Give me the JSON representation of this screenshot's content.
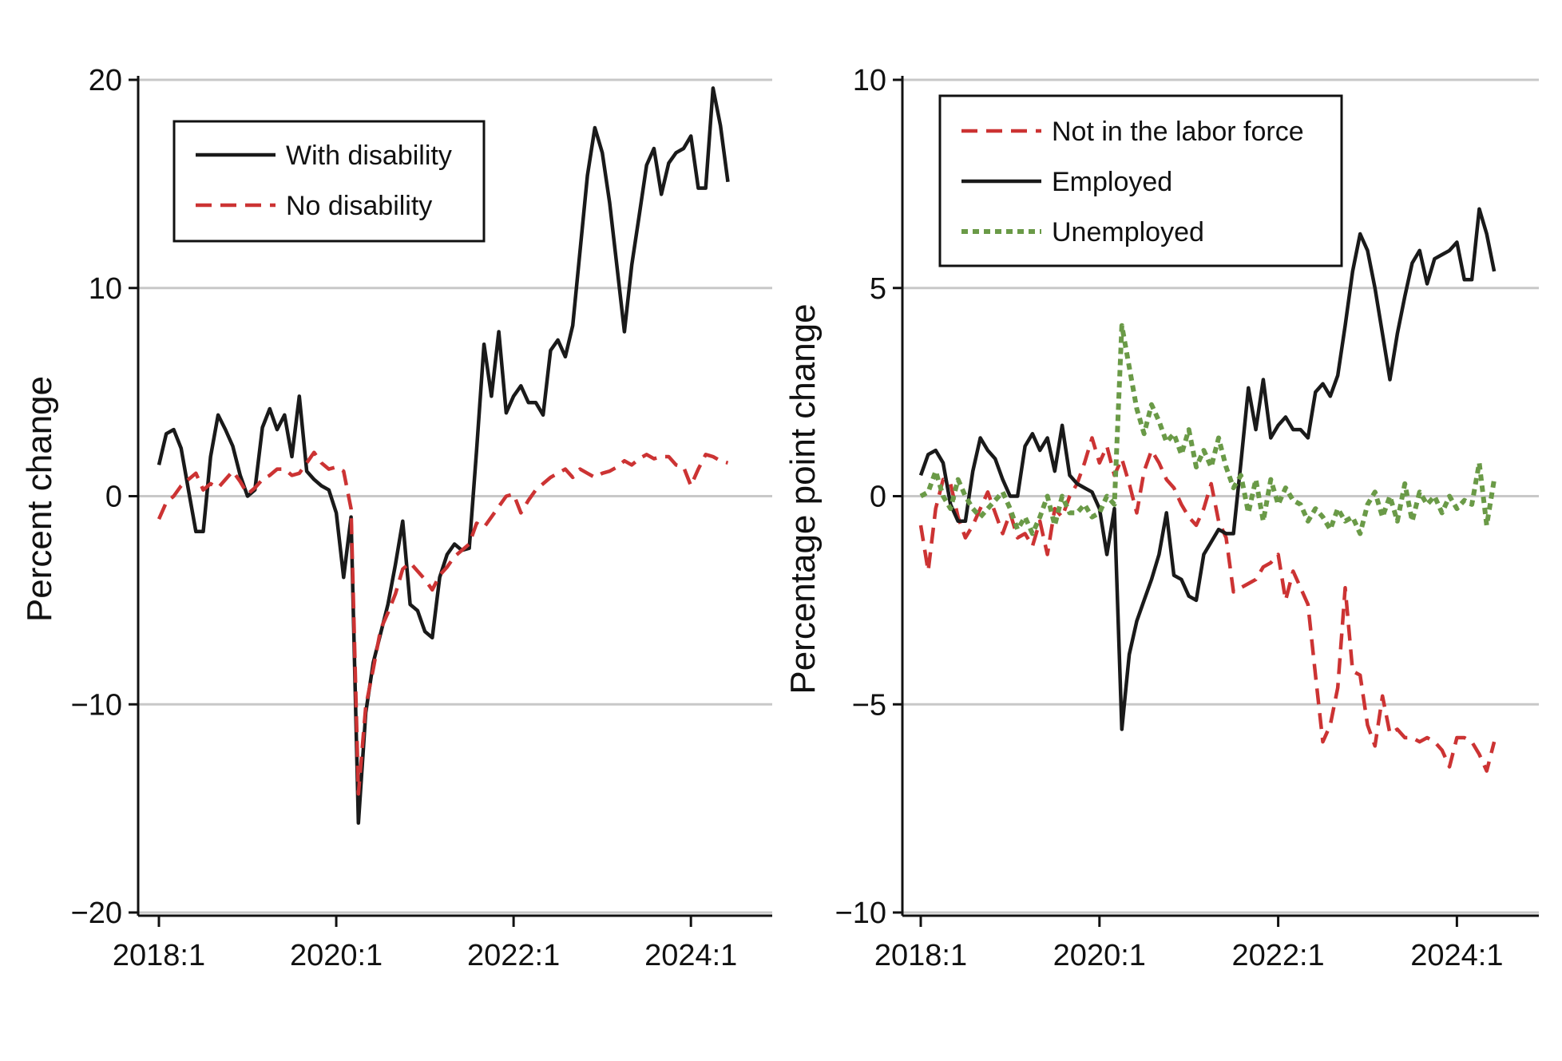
{
  "colors": {
    "disability": "#1a1a1a",
    "no_disability": "#cc3333",
    "not_in_labor_force": "#cc3333",
    "employed": "#1a1a1a",
    "unemployed": "#6a9a47",
    "grid": "#c8c8c8"
  },
  "chart_data": [
    {
      "type": "line",
      "title": "",
      "xlabel": "",
      "ylabel": "Percent change",
      "ylim": [
        -20,
        20
      ],
      "yticks": [
        20,
        10,
        0,
        -10,
        -20
      ],
      "ytick_labels": [
        "20",
        "10",
        "0",
        "−10",
        "−20"
      ],
      "xlim": [
        2018.0,
        2024.917
      ],
      "xticks": [
        2018.0,
        2020.0,
        2022.0,
        2024.0
      ],
      "xtick_labels": [
        "2018:1",
        "2020:1",
        "2022:1",
        "2024:1"
      ],
      "grid": true,
      "legend_position": "top-left",
      "series": [
        {
          "name": "With disability",
          "style": "solid",
          "color": "#1a1a1a",
          "x": [
            2018.0,
            2018.083,
            2018.167,
            2018.25,
            2018.333,
            2018.417,
            2018.5,
            2018.583,
            2018.667,
            2018.75,
            2018.833,
            2018.917,
            2019.0,
            2019.083,
            2019.167,
            2019.25,
            2019.333,
            2019.417,
            2019.5,
            2019.583,
            2019.667,
            2019.75,
            2019.833,
            2019.917,
            2020.0,
            2020.083,
            2020.167,
            2020.25,
            2020.333,
            2020.417,
            2020.5,
            2020.583,
            2020.667,
            2020.75,
            2020.833,
            2020.917,
            2021.0,
            2021.083,
            2021.167,
            2021.25,
            2021.333,
            2021.417,
            2021.5,
            2021.583,
            2021.667,
            2021.75,
            2021.833,
            2021.917,
            2022.0,
            2022.083,
            2022.167,
            2022.25,
            2022.333,
            2022.417,
            2022.5,
            2022.583,
            2022.667,
            2022.75,
            2022.833,
            2022.917,
            2023.0,
            2023.083,
            2023.167,
            2023.25,
            2023.333,
            2023.417,
            2023.5,
            2023.583,
            2023.667,
            2023.75,
            2023.833,
            2023.917,
            2024.0,
            2024.083,
            2024.167,
            2024.25,
            2024.333,
            2024.417
          ],
          "y": [
            1.5,
            3.0,
            3.2,
            2.3,
            0.3,
            -1.7,
            -1.7,
            1.9,
            3.9,
            3.2,
            2.4,
            1.0,
            0.0,
            0.3,
            3.3,
            4.2,
            3.2,
            3.9,
            1.9,
            4.8,
            1.2,
            0.8,
            0.5,
            0.3,
            -0.8,
            -3.9,
            -1.0,
            -15.7,
            -10.4,
            -8.0,
            -6.6,
            -5.2,
            -3.3,
            -1.2,
            -5.2,
            -5.5,
            -6.5,
            -6.8,
            -3.9,
            -2.8,
            -2.3,
            -2.6,
            -2.5,
            2.2,
            7.3,
            4.8,
            7.9,
            4.0,
            4.8,
            5.3,
            4.5,
            4.5,
            3.9,
            7.0,
            7.5,
            6.7,
            8.2,
            11.8,
            15.4,
            17.7,
            16.5,
            14.1,
            11.0,
            7.9,
            11.1,
            13.5,
            15.9,
            16.7,
            14.5,
            16.0,
            16.5,
            16.7,
            17.3,
            14.8,
            14.8,
            19.6,
            17.8,
            15.1
          ]
        },
        {
          "name": "No disability",
          "style": "dashed",
          "color": "#cc3333",
          "x": [
            2018.0,
            2018.083,
            2018.167,
            2018.25,
            2018.333,
            2018.417,
            2018.5,
            2018.583,
            2018.667,
            2018.75,
            2018.833,
            2018.917,
            2019.0,
            2019.083,
            2019.167,
            2019.25,
            2019.333,
            2019.417,
            2019.5,
            2019.583,
            2019.667,
            2019.75,
            2019.833,
            2019.917,
            2020.0,
            2020.083,
            2020.167,
            2020.25,
            2020.333,
            2020.417,
            2020.5,
            2020.583,
            2020.667,
            2020.75,
            2020.833,
            2020.917,
            2021.0,
            2021.083,
            2021.167,
            2021.25,
            2021.333,
            2021.417,
            2021.5,
            2021.583,
            2021.667,
            2021.75,
            2021.833,
            2021.917,
            2022.0,
            2022.083,
            2022.167,
            2022.25,
            2022.333,
            2022.417,
            2022.5,
            2022.583,
            2022.667,
            2022.75,
            2022.833,
            2022.917,
            2023.0,
            2023.083,
            2023.167,
            2023.25,
            2023.333,
            2023.417,
            2023.5,
            2023.583,
            2023.667,
            2023.75,
            2023.833,
            2023.917,
            2024.0,
            2024.083,
            2024.167,
            2024.25,
            2024.333,
            2024.417
          ],
          "y": [
            -1.1,
            -0.3,
            0.0,
            0.5,
            0.8,
            1.1,
            0.3,
            0.6,
            0.4,
            0.8,
            1.2,
            0.7,
            0.1,
            0.4,
            0.8,
            1.0,
            1.3,
            1.3,
            1.0,
            1.1,
            1.6,
            2.1,
            1.6,
            1.3,
            1.4,
            1.2,
            -0.6,
            -14.3,
            -10.1,
            -8.3,
            -6.4,
            -5.6,
            -4.7,
            -3.5,
            -3.2,
            -3.6,
            -4.0,
            -4.5,
            -3.8,
            -3.4,
            -2.9,
            -2.6,
            -2.3,
            -1.3,
            -1.5,
            -1.0,
            -0.5,
            0.0,
            0.1,
            -0.8,
            -0.2,
            0.3,
            0.6,
            0.9,
            1.1,
            1.3,
            0.9,
            1.3,
            1.1,
            0.9,
            1.1,
            1.2,
            1.4,
            1.7,
            1.5,
            1.8,
            2.0,
            1.8,
            1.9,
            1.9,
            1.5,
            1.4,
            0.5,
            1.3,
            2.0,
            1.9,
            1.7,
            1.6
          ]
        }
      ]
    },
    {
      "type": "line",
      "title": "",
      "xlabel": "",
      "ylabel": "Percentage point change",
      "ylim": [
        -10,
        10
      ],
      "yticks": [
        10,
        5,
        0,
        -5,
        -10
      ],
      "ytick_labels": [
        "10",
        "5",
        "0",
        "−5",
        "−10"
      ],
      "xlim": [
        2018.0,
        2024.917
      ],
      "xticks": [
        2018.0,
        2020.0,
        2022.0,
        2024.0
      ],
      "xtick_labels": [
        "2018:1",
        "2020:1",
        "2022:1",
        "2024:1"
      ],
      "grid": true,
      "legend_position": "top-left",
      "series": [
        {
          "name": "Not in the labor force",
          "style": "dashed",
          "color": "#cc3333",
          "x": [
            2018.0,
            2018.083,
            2018.167,
            2018.25,
            2018.333,
            2018.417,
            2018.5,
            2018.583,
            2018.667,
            2018.75,
            2018.833,
            2018.917,
            2019.0,
            2019.083,
            2019.167,
            2019.25,
            2019.333,
            2019.417,
            2019.5,
            2019.583,
            2019.667,
            2019.75,
            2019.833,
            2019.917,
            2020.0,
            2020.083,
            2020.167,
            2020.25,
            2020.333,
            2020.417,
            2020.5,
            2020.583,
            2020.667,
            2020.75,
            2020.833,
            2020.917,
            2021.0,
            2021.083,
            2021.167,
            2021.25,
            2021.333,
            2021.417,
            2021.5,
            2021.583,
            2021.667,
            2021.75,
            2021.833,
            2021.917,
            2022.0,
            2022.083,
            2022.167,
            2022.25,
            2022.333,
            2022.417,
            2022.5,
            2022.583,
            2022.667,
            2022.75,
            2022.833,
            2022.917,
            2023.0,
            2023.083,
            2023.167,
            2023.25,
            2023.333,
            2023.417,
            2023.5,
            2023.583,
            2023.667,
            2023.75,
            2023.833,
            2023.917,
            2024.0,
            2024.083,
            2024.167,
            2024.25,
            2024.333,
            2024.417
          ],
          "y": [
            -0.7,
            -1.8,
            -0.3,
            0.4,
            0.3,
            -0.5,
            -1.0,
            -0.7,
            -0.3,
            0.1,
            -0.4,
            -0.9,
            -0.4,
            -1.0,
            -0.9,
            -1.2,
            -0.6,
            -1.4,
            -0.3,
            -0.5,
            0.0,
            0.3,
            0.8,
            1.4,
            0.8,
            1.2,
            0.5,
            0.9,
            0.3,
            -0.4,
            0.6,
            1.1,
            0.8,
            0.4,
            0.2,
            -0.2,
            -0.5,
            -0.7,
            -0.3,
            0.3,
            -0.6,
            -1.0,
            -2.3,
            -2.2,
            -2.1,
            -2.0,
            -1.7,
            -1.6,
            -1.4,
            -2.5,
            -1.8,
            -2.2,
            -2.6,
            -4.3,
            -5.9,
            -5.5,
            -4.6,
            -2.2,
            -4.2,
            -4.3,
            -5.5,
            -6.0,
            -4.8,
            -5.7,
            -5.6,
            -5.8,
            -5.8,
            -5.9,
            -5.8,
            -5.9,
            -6.1,
            -6.5,
            -5.8,
            -5.8,
            -5.9,
            -6.2,
            -6.6,
            -5.9
          ]
        },
        {
          "name": "Employed",
          "style": "solid",
          "color": "#1a1a1a",
          "x": [
            2018.0,
            2018.083,
            2018.167,
            2018.25,
            2018.333,
            2018.417,
            2018.5,
            2018.583,
            2018.667,
            2018.75,
            2018.833,
            2018.917,
            2019.0,
            2019.083,
            2019.167,
            2019.25,
            2019.333,
            2019.417,
            2019.5,
            2019.583,
            2019.667,
            2019.75,
            2019.833,
            2019.917,
            2020.0,
            2020.083,
            2020.167,
            2020.25,
            2020.333,
            2020.417,
            2020.5,
            2020.583,
            2020.667,
            2020.75,
            2020.833,
            2020.917,
            2021.0,
            2021.083,
            2021.167,
            2021.25,
            2021.333,
            2021.417,
            2021.5,
            2021.583,
            2021.667,
            2021.75,
            2021.833,
            2021.917,
            2022.0,
            2022.083,
            2022.167,
            2022.25,
            2022.333,
            2022.417,
            2022.5,
            2022.583,
            2022.667,
            2022.75,
            2022.833,
            2022.917,
            2023.0,
            2023.083,
            2023.167,
            2023.25,
            2023.333,
            2023.417,
            2023.5,
            2023.583,
            2023.667,
            2023.75,
            2023.833,
            2023.917,
            2024.0,
            2024.083,
            2024.167,
            2024.25,
            2024.333,
            2024.417
          ],
          "y": [
            0.5,
            1.0,
            1.1,
            0.8,
            -0.2,
            -0.6,
            -0.6,
            0.6,
            1.4,
            1.1,
            0.9,
            0.4,
            0.0,
            0.0,
            1.2,
            1.5,
            1.1,
            1.4,
            0.6,
            1.7,
            0.5,
            0.3,
            0.2,
            0.1,
            -0.3,
            -1.4,
            -0.3,
            -5.6,
            -3.8,
            -3.0,
            -2.5,
            -2.0,
            -1.4,
            -0.4,
            -1.9,
            -2.0,
            -2.4,
            -2.5,
            -1.4,
            -1.1,
            -0.8,
            -0.9,
            -0.9,
            0.8,
            2.6,
            1.6,
            2.8,
            1.4,
            1.7,
            1.9,
            1.6,
            1.6,
            1.4,
            2.5,
            2.7,
            2.4,
            2.9,
            4.1,
            5.4,
            6.3,
            5.9,
            5.0,
            3.9,
            2.8,
            3.9,
            4.8,
            5.6,
            5.9,
            5.1,
            5.7,
            5.8,
            5.9,
            6.1,
            5.2,
            5.2,
            6.9,
            6.3,
            5.4
          ]
        },
        {
          "name": "Unemployed",
          "style": "dotted",
          "color": "#6a9a47",
          "x": [
            2018.0,
            2018.083,
            2018.167,
            2018.25,
            2018.333,
            2018.417,
            2018.5,
            2018.583,
            2018.667,
            2018.75,
            2018.833,
            2018.917,
            2019.0,
            2019.083,
            2019.167,
            2019.25,
            2019.333,
            2019.417,
            2019.5,
            2019.583,
            2019.667,
            2019.75,
            2019.833,
            2019.917,
            2020.0,
            2020.083,
            2020.167,
            2020.25,
            2020.333,
            2020.417,
            2020.5,
            2020.583,
            2020.667,
            2020.75,
            2020.833,
            2020.917,
            2021.0,
            2021.083,
            2021.167,
            2021.25,
            2021.333,
            2021.417,
            2021.5,
            2021.583,
            2021.667,
            2021.75,
            2021.833,
            2021.917,
            2022.0,
            2022.083,
            2022.167,
            2022.25,
            2022.333,
            2022.417,
            2022.5,
            2022.583,
            2022.667,
            2022.75,
            2022.833,
            2022.917,
            2023.0,
            2023.083,
            2023.167,
            2023.25,
            2023.333,
            2023.417,
            2023.5,
            2023.583,
            2023.667,
            2023.75,
            2023.833,
            2023.917,
            2024.0,
            2024.083,
            2024.167,
            2024.25,
            2024.333,
            2024.417
          ],
          "y": [
            0.0,
            0.1,
            0.6,
            0.0,
            -0.3,
            0.4,
            0.0,
            -0.3,
            -0.5,
            -0.3,
            -0.1,
            0.1,
            -0.3,
            -0.8,
            -0.5,
            -0.9,
            -0.5,
            0.0,
            -0.7,
            0.0,
            -0.4,
            -0.4,
            -0.2,
            -0.5,
            -0.4,
            0.0,
            -0.2,
            4.1,
            3.1,
            2.1,
            1.5,
            2.2,
            1.8,
            1.3,
            1.5,
            1.0,
            1.6,
            0.7,
            1.1,
            0.7,
            1.4,
            0.7,
            0.2,
            0.5,
            -0.4,
            0.4,
            -0.6,
            0.4,
            -0.2,
            0.2,
            -0.1,
            -0.2,
            -0.6,
            -0.3,
            -0.5,
            -0.8,
            -0.3,
            -0.6,
            -0.5,
            -0.9,
            -0.2,
            0.1,
            -0.5,
            0.0,
            -0.6,
            0.3,
            -0.6,
            0.1,
            -0.2,
            0.0,
            -0.4,
            0.0,
            -0.3,
            -0.1,
            -0.2,
            0.8,
            -0.7,
            0.4
          ]
        }
      ]
    }
  ]
}
